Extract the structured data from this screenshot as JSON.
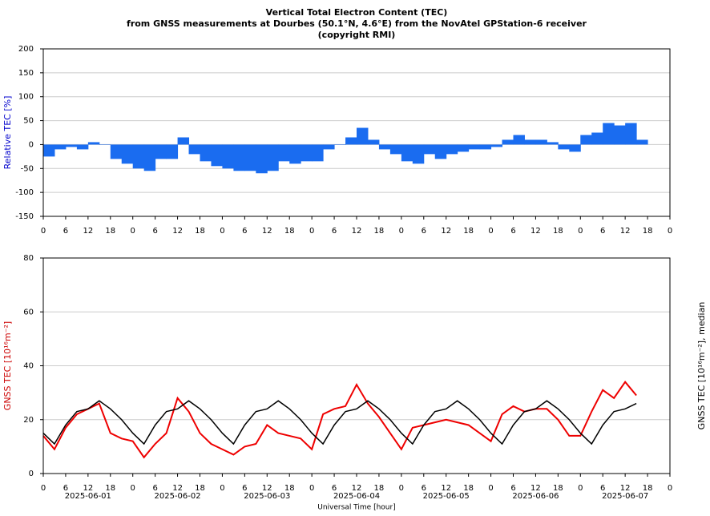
{
  "title_lines": [
    "Vertical Total Electron Content (TEC)",
    "from GNSS measurements at Dourbes (50.1°N, 4.6°E) from the NovAtel GPStation-6 receiver",
    "(copyright RMI)"
  ],
  "chart_data": [
    {
      "type": "bar",
      "ylabel": "Relative TEC [%]",
      "color": "#1a6cf0",
      "label_color": "#0000cc",
      "x": [
        0,
        3,
        6,
        9,
        12,
        15,
        18,
        21,
        24,
        27,
        30,
        33,
        36,
        39,
        42,
        45,
        48,
        51,
        54,
        57,
        60,
        63,
        66,
        69,
        72,
        75,
        78,
        81,
        84,
        87,
        90,
        93,
        96,
        99,
        102,
        105,
        108,
        111,
        114,
        117,
        120,
        123,
        126,
        129,
        132,
        135,
        138,
        141,
        144,
        147,
        150,
        153,
        156,
        159
      ],
      "values": [
        -25,
        -10,
        -5,
        -10,
        5,
        0,
        -30,
        -40,
        -50,
        -55,
        -30,
        -30,
        15,
        -20,
        -35,
        -45,
        -50,
        -55,
        -55,
        -60,
        -55,
        -35,
        -40,
        -35,
        -35,
        -10,
        0,
        15,
        35,
        10,
        -10,
        -20,
        -35,
        -40,
        -20,
        -30,
        -20,
        -15,
        -10,
        -10,
        -5,
        10,
        20,
        10,
        10,
        5,
        -10,
        -15,
        20,
        25,
        45,
        40,
        45,
        10
      ],
      "xlim": [
        0,
        168
      ],
      "ylim": [
        -150,
        200
      ],
      "yticks": [
        -150,
        -100,
        -50,
        0,
        50,
        100,
        150,
        200
      ],
      "xticks": [
        0,
        6,
        12,
        18,
        {
          "value": 24,
          "label": "0"
        },
        {
          "value": 30,
          "label": "6"
        },
        {
          "value": 36,
          "label": "12"
        },
        {
          "value": 42,
          "label": "18"
        },
        {
          "value": 48,
          "label": "0"
        },
        {
          "value": 54,
          "label": "6"
        },
        {
          "value": 60,
          "label": "12"
        },
        {
          "value": 66,
          "label": "18"
        },
        {
          "value": 72,
          "label": "0"
        },
        {
          "value": 78,
          "label": "6"
        },
        {
          "value": 84,
          "label": "12"
        },
        {
          "value": 90,
          "label": "18"
        },
        {
          "value": 96,
          "label": "0"
        },
        {
          "value": 102,
          "label": "6"
        },
        {
          "value": 108,
          "label": "12"
        },
        {
          "value": 114,
          "label": "18"
        },
        {
          "value": 120,
          "label": "0"
        },
        {
          "value": 126,
          "label": "6"
        },
        {
          "value": 132,
          "label": "12"
        },
        {
          "value": 138,
          "label": "18"
        },
        {
          "value": 144,
          "label": "0"
        },
        {
          "value": 150,
          "label": "6"
        },
        {
          "value": 156,
          "label": "12"
        },
        {
          "value": 162,
          "label": "18"
        },
        {
          "value": 168,
          "label": "0"
        }
      ],
      "grid": true
    },
    {
      "type": "line",
      "ylabel": "GNSS TEC [10¹⁶m⁻²]",
      "label_color": "#cc0000",
      "y2label": "GNSS TEC [10¹⁶m⁻²], median",
      "xlabel": "Universal Time [hour]",
      "x": [
        0,
        3,
        6,
        9,
        12,
        15,
        18,
        21,
        24,
        27,
        30,
        33,
        36,
        39,
        42,
        45,
        48,
        51,
        54,
        57,
        60,
        63,
        66,
        69,
        72,
        75,
        78,
        81,
        84,
        87,
        90,
        93,
        96,
        99,
        102,
        105,
        108,
        111,
        114,
        117,
        120,
        123,
        126,
        129,
        132,
        135,
        138,
        141,
        144,
        147,
        150,
        153,
        156,
        159
      ],
      "series": [
        {
          "color": "#ee0000",
          "values": [
            14,
            9,
            17,
            22,
            24,
            26,
            15,
            13,
            12,
            6,
            11,
            15,
            28,
            23,
            15,
            11,
            9,
            7,
            10,
            11,
            18,
            15,
            14,
            13,
            9,
            22,
            24,
            25,
            33,
            26,
            21,
            15,
            9,
            17,
            18,
            19,
            20,
            19,
            18,
            15,
            12,
            22,
            25,
            23,
            24,
            24,
            20,
            14,
            14,
            23,
            31,
            28,
            34,
            29
          ]
        },
        {
          "color": "#000000",
          "values": [
            15,
            11,
            18,
            23,
            24,
            27,
            24,
            20,
            15,
            11,
            18,
            23,
            24,
            27,
            24,
            20,
            15,
            11,
            18,
            23,
            24,
            27,
            24,
            20,
            15,
            11,
            18,
            23,
            24,
            27,
            24,
            20,
            15,
            11,
            18,
            23,
            24,
            27,
            24,
            20,
            15,
            11,
            18,
            23,
            24,
            27,
            24,
            20,
            15,
            11,
            18,
            23,
            24,
            26
          ]
        }
      ],
      "xlim": [
        0,
        168
      ],
      "ylim": [
        0,
        80
      ],
      "yticks": [
        0,
        20,
        40,
        60,
        80
      ],
      "xticks": [
        0,
        6,
        12,
        18,
        {
          "value": 24,
          "label": "0"
        },
        {
          "value": 30,
          "label": "6"
        },
        {
          "value": 36,
          "label": "12"
        },
        {
          "value": 42,
          "label": "18"
        },
        {
          "value": 48,
          "label": "0"
        },
        {
          "value": 54,
          "label": "6"
        },
        {
          "value": 60,
          "label": "12"
        },
        {
          "value": 66,
          "label": "18"
        },
        {
          "value": 72,
          "label": "0"
        },
        {
          "value": 78,
          "label": "6"
        },
        {
          "value": 84,
          "label": "12"
        },
        {
          "value": 90,
          "label": "18"
        },
        {
          "value": 96,
          "label": "0"
        },
        {
          "value": 102,
          "label": "6"
        },
        {
          "value": 108,
          "label": "12"
        },
        {
          "value": 114,
          "label": "18"
        },
        {
          "value": 120,
          "label": "0"
        },
        {
          "value": 126,
          "label": "6"
        },
        {
          "value": 132,
          "label": "12"
        },
        {
          "value": 138,
          "label": "18"
        },
        {
          "value": 144,
          "label": "0"
        },
        {
          "value": 150,
          "label": "6"
        },
        {
          "value": 156,
          "label": "12"
        },
        {
          "value": 162,
          "label": "18"
        },
        {
          "value": 168,
          "label": "0"
        }
      ],
      "date_ticks": [
        {
          "value": 12,
          "label": "2025-06-01"
        },
        {
          "value": 36,
          "label": "2025-06-02"
        },
        {
          "value": 60,
          "label": "2025-06-03"
        },
        {
          "value": 84,
          "label": "2025-06-04"
        },
        {
          "value": 108,
          "label": "2025-06-05"
        },
        {
          "value": 132,
          "label": "2025-06-06"
        },
        {
          "value": 156,
          "label": "2025-06-07"
        }
      ],
      "grid": true
    }
  ]
}
